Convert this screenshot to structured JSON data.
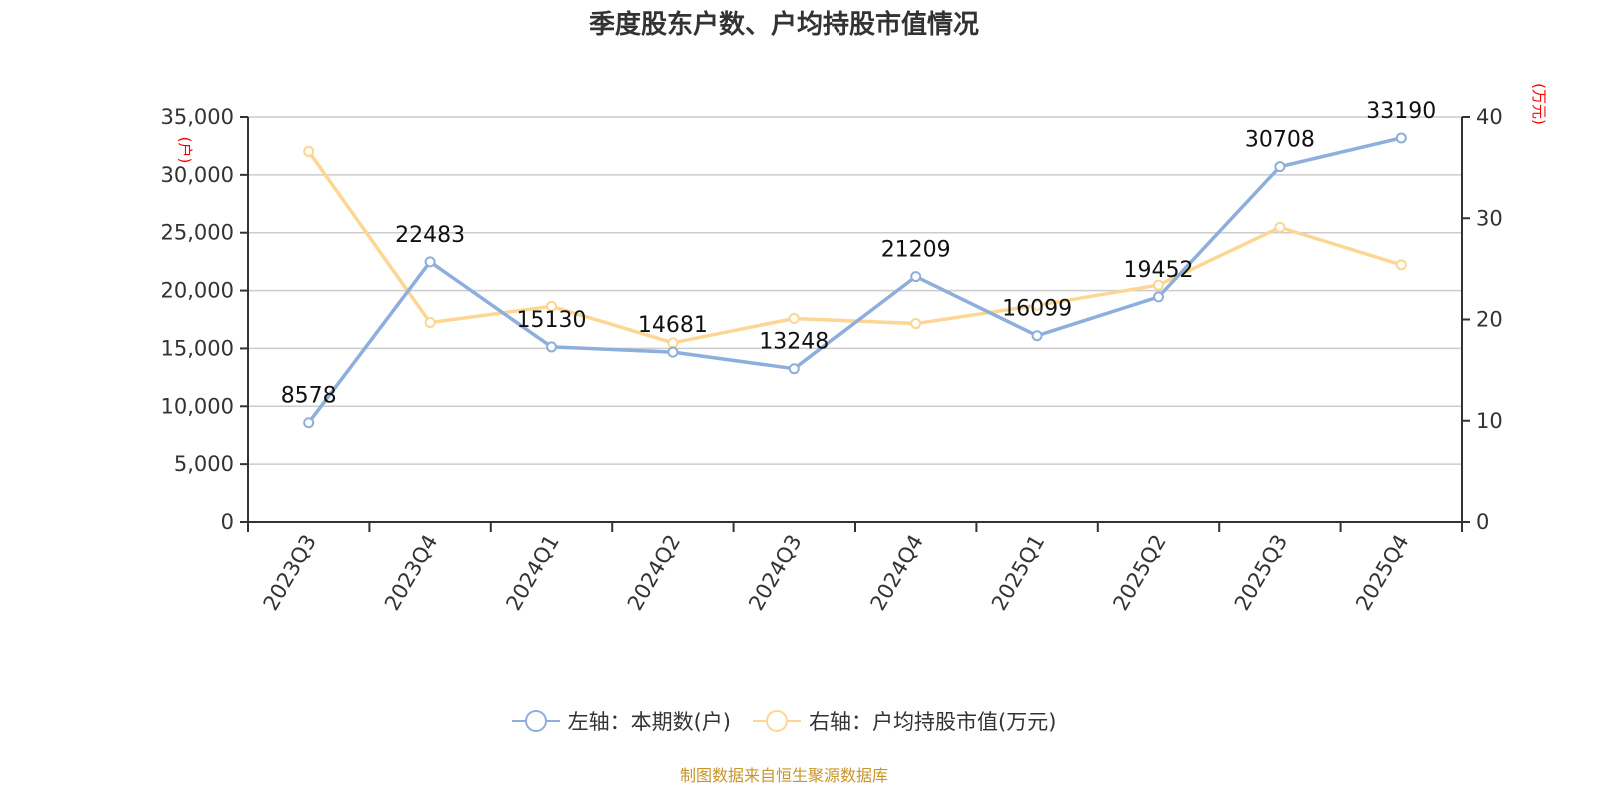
{
  "title": "季度股东户数、户均持股市值情况",
  "source": "制图数据来自恒生聚源数据库",
  "colors": {
    "left_series": "#8eaedb",
    "right_series": "#fdd693",
    "axis_unit": "#ff0000",
    "grid": "#cccccc",
    "axis": "#333333",
    "source": "#c9952a"
  },
  "legend": [
    {
      "label": "左轴：本期数(户)",
      "color": "#8eaedb"
    },
    {
      "label": "右轴：户均持股市值(万元)",
      "color": "#fdd693"
    }
  ],
  "chart_data": {
    "type": "line",
    "title": "季度股东户数、户均持股市值情况",
    "categories": [
      "2023Q3",
      "2023Q4",
      "2024Q1",
      "2024Q2",
      "2024Q3",
      "2024Q4",
      "2025Q1",
      "2025Q2",
      "2025Q3",
      "2025Q4"
    ],
    "series": [
      {
        "name": "左轴：本期数(户)",
        "axis": "left",
        "values": [
          8578,
          22483,
          15130,
          14681,
          13248,
          21209,
          16099,
          19452,
          30708,
          33190
        ],
        "labels_shown": true
      },
      {
        "name": "右轴：户均持股市值(万元)",
        "axis": "right",
        "values": [
          36.6,
          19.7,
          21.3,
          17.7,
          20.1,
          19.6,
          21.4,
          23.4,
          29.1,
          25.4
        ],
        "labels_shown": false
      }
    ],
    "y_left": {
      "label": "(户)",
      "ylim": [
        0,
        35000
      ],
      "ticks": [
        "0",
        "5,000",
        "10,000",
        "15,000",
        "20,000",
        "25,000",
        "30,000",
        "35,000"
      ]
    },
    "y_right": {
      "label": "(万元)",
      "ylim": [
        0,
        40
      ],
      "ticks": [
        "0",
        "10",
        "20",
        "30",
        "40"
      ]
    },
    "grid": true,
    "legend_position": "bottom"
  }
}
